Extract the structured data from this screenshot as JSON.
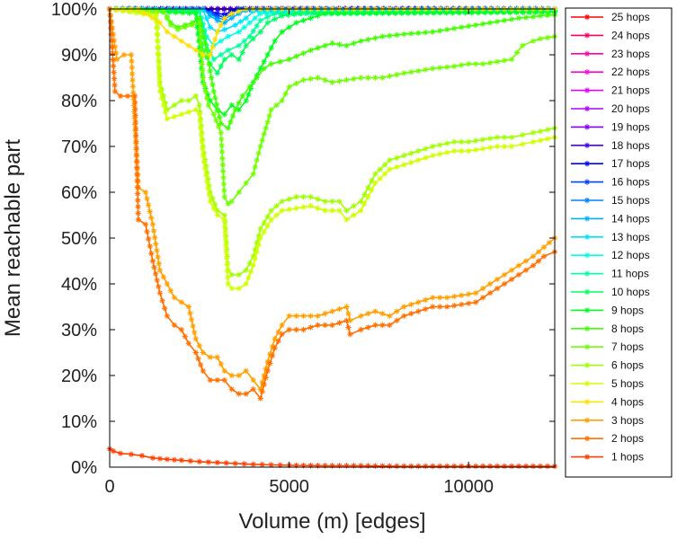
{
  "chart_data": {
    "type": "line",
    "title": "",
    "xlabel": "Volume (m) [edges]",
    "ylabel": "Mean reachable part",
    "xlim": [
      0,
      12400
    ],
    "ylim": [
      0,
      100
    ],
    "xticks": [
      0,
      5000,
      10000
    ],
    "xtick_labels": [
      "0",
      "5000",
      "10000"
    ],
    "yticks": [
      0,
      10,
      20,
      30,
      40,
      50,
      60,
      70,
      80,
      90,
      100
    ],
    "ytick_labels": [
      "0%",
      "10%",
      "20%",
      "30%",
      "40%",
      "50%",
      "60%",
      "70%",
      "80%",
      "90%",
      "100%"
    ],
    "legend_position": "right",
    "grid": false,
    "series": [
      {
        "name": "25 hops",
        "color": "#ff0000",
        "x": [
          0,
          12400
        ],
        "y": [
          100,
          100
        ]
      },
      {
        "name": "24 hops",
        "color": "#ff0060",
        "x": [
          0,
          12400
        ],
        "y": [
          100,
          100
        ]
      },
      {
        "name": "23 hops",
        "color": "#ff00a0",
        "x": [
          0,
          12400
        ],
        "y": [
          100,
          100
        ]
      },
      {
        "name": "22 hops",
        "color": "#ff00e0",
        "x": [
          0,
          12400
        ],
        "y": [
          100,
          100
        ]
      },
      {
        "name": "21 hops",
        "color": "#e000ff",
        "x": [
          0,
          12400
        ],
        "y": [
          100,
          100
        ]
      },
      {
        "name": "20 hops",
        "color": "#b000ff",
        "x": [
          0,
          12400
        ],
        "y": [
          100,
          100
        ]
      },
      {
        "name": "19 hops",
        "color": "#8000ff",
        "x": [
          0,
          12400
        ],
        "y": [
          100,
          100
        ]
      },
      {
        "name": "18 hops",
        "color": "#4000ff",
        "x": [
          0,
          12400
        ],
        "y": [
          100,
          100
        ]
      },
      {
        "name": "17 hops",
        "color": "#0000ff",
        "x": [
          0,
          2600,
          2800,
          3000,
          3200,
          3400,
          3600,
          12400
        ],
        "y": [
          100,
          100,
          99.5,
          99,
          98.8,
          99.5,
          100,
          100
        ]
      },
      {
        "name": "16 hops",
        "color": "#0040ff",
        "x": [
          0,
          2600,
          2800,
          3000,
          3200,
          3400,
          3600,
          12400
        ],
        "y": [
          100,
          100,
          99.2,
          98.5,
          98.3,
          99,
          100,
          100
        ]
      },
      {
        "name": "15 hops",
        "color": "#0080ff",
        "x": [
          0,
          2600,
          2800,
          3000,
          3200,
          3400,
          3600,
          12400
        ],
        "y": [
          100,
          100,
          99,
          98,
          97.8,
          98.8,
          99.8,
          100
        ]
      },
      {
        "name": "14 hops",
        "color": "#00b0ff",
        "x": [
          0,
          2600,
          2800,
          3000,
          3200,
          3400,
          3600,
          3800,
          12400
        ],
        "y": [
          100,
          100,
          98.5,
          97.5,
          97,
          98,
          99,
          99.8,
          100
        ]
      },
      {
        "name": "13 hops",
        "color": "#00e0ff",
        "x": [
          0,
          2600,
          2800,
          3000,
          3200,
          3500,
          3800,
          4000,
          12400
        ],
        "y": [
          100,
          99.8,
          96,
          95,
          95.5,
          96.5,
          98,
          99.5,
          99.8
        ]
      },
      {
        "name": "12 hops",
        "color": "#00ffe0",
        "x": [
          0,
          2500,
          2700,
          2900,
          3100,
          3300,
          3600,
          3900,
          4200,
          12400
        ],
        "y": [
          100,
          99.5,
          94,
          92,
          93,
          94,
          95,
          97,
          99,
          99.6
        ]
      },
      {
        "name": "11 hops",
        "color": "#00ffa0",
        "x": [
          0,
          2500,
          2700,
          2900,
          3100,
          3300,
          3600,
          3900,
          4200,
          4600,
          12400
        ],
        "y": [
          100,
          99.5,
          92,
          89,
          90,
          91,
          92,
          94,
          97.5,
          99,
          99.5
        ]
      },
      {
        "name": "10 hops",
        "color": "#00ff60",
        "x": [
          0,
          2400,
          2600,
          2800,
          3000,
          3200,
          3400,
          3600,
          3800,
          4000,
          4200,
          4400,
          4800,
          5500,
          12400
        ],
        "y": [
          100,
          99.5,
          91,
          88,
          86,
          89,
          90,
          89,
          92,
          93.5,
          95,
          97,
          98.5,
          99.2,
          99.5
        ]
      },
      {
        "name": "9 hops",
        "color": "#00ff20",
        "x": [
          0,
          2400,
          2600,
          2800,
          3000,
          3200,
          3400,
          3600,
          3800,
          4000,
          4200,
          4400,
          4600,
          4800,
          5200,
          5600,
          6000,
          12400
        ],
        "y": [
          100,
          99,
          84,
          80,
          78,
          77,
          79,
          78,
          80,
          84,
          87,
          90,
          93,
          95,
          97,
          98,
          99,
          99.3
        ]
      },
      {
        "name": "8 hops",
        "color": "#40ff00",
        "x": [
          0,
          1500,
          1700,
          1900,
          2100,
          2300,
          2500,
          2700,
          2900,
          3100,
          3300,
          3500,
          3700,
          3900,
          4100,
          4300,
          4500,
          5000,
          5600,
          6200,
          6600,
          7000,
          7600,
          8200,
          9000,
          9800,
          10200,
          10600,
          11000,
          11400,
          11800,
          12000,
          12400
        ],
        "y": [
          100,
          99.5,
          97,
          96,
          96.5,
          97,
          98,
          91,
          82,
          75,
          74,
          78,
          81,
          83,
          85,
          87,
          88,
          89,
          91,
          92.5,
          92,
          93,
          94,
          94.5,
          95,
          96,
          96.5,
          97,
          97.5,
          98,
          98.3,
          98.5,
          98.7
        ]
      },
      {
        "name": "7 hops",
        "color": "#70ff00",
        "x": [
          0,
          1500,
          1700,
          1900,
          2100,
          2300,
          2500,
          2600,
          2750,
          2900,
          3100,
          3200,
          3300,
          3400,
          3600,
          3800,
          4000,
          4200,
          4500,
          4800,
          5000,
          5400,
          5800,
          6200,
          6600,
          7000,
          7600,
          8200,
          8600,
          9000,
          9600,
          10000,
          10400,
          10800,
          11200,
          11500,
          11800,
          12000,
          12400
        ],
        "y": [
          100,
          99.5,
          96.5,
          95.5,
          96,
          96.5,
          97,
          85,
          79,
          77,
          73,
          59,
          57.5,
          58,
          60,
          62,
          64,
          70,
          78,
          80,
          83,
          84.5,
          85,
          84,
          84.5,
          85,
          85,
          86,
          86.5,
          87,
          87.5,
          88,
          88,
          88.5,
          89,
          92,
          93,
          93.5,
          94
        ]
      },
      {
        "name": "6 hops",
        "color": "#a0ff00",
        "x": [
          0,
          1300,
          1400,
          1600,
          1800,
          2000,
          2200,
          2400,
          2500,
          2600,
          2800,
          3000,
          3200,
          3300,
          3400,
          3600,
          3800,
          4000,
          4200,
          4500,
          4800,
          5200,
          5600,
          6000,
          6400,
          6600,
          6800,
          7000,
          7400,
          7800,
          8200,
          8600,
          9000,
          9600,
          10000,
          10400,
          10800,
          11200,
          11500,
          11800,
          12000,
          12400
        ],
        "y": [
          100,
          99,
          84,
          78,
          79,
          80,
          80,
          81,
          79,
          70,
          60,
          56,
          55,
          43,
          42,
          42,
          43,
          46,
          52,
          56,
          58,
          59,
          59,
          58,
          58,
          56,
          57,
          58,
          64,
          67,
          68,
          69,
          70,
          71,
          71,
          71.5,
          72,
          72,
          72.5,
          73,
          73.3,
          74
        ]
      },
      {
        "name": "5 hops",
        "color": "#d0ff00",
        "x": [
          0,
          1300,
          1400,
          1600,
          1800,
          2000,
          2200,
          2400,
          2500,
          2600,
          2800,
          3000,
          3200,
          3300,
          3400,
          3600,
          3800,
          4000,
          4200,
          4500,
          4800,
          5200,
          5600,
          6000,
          6400,
          6600,
          6800,
          7000,
          7400,
          7800,
          8200,
          8600,
          9000,
          9600,
          10000,
          10400,
          10800,
          11200,
          11500,
          11800,
          12000,
          12400
        ],
        "y": [
          100,
          98.5,
          82,
          76,
          76.5,
          77,
          77.5,
          78,
          77,
          68,
          58,
          55,
          54,
          40,
          39,
          39,
          40,
          44,
          50,
          54,
          56,
          56.5,
          57,
          56,
          56,
          54,
          55,
          56,
          62,
          65,
          66,
          67,
          68,
          69,
          69,
          69.5,
          70,
          70,
          70.5,
          71,
          71.3,
          72
        ]
      },
      {
        "name": "4 hops",
        "color": "#ffe000",
        "x": [
          0,
          400,
          600,
          800,
          1000,
          1200,
          1400,
          1600,
          1800,
          2000,
          2200,
          2400,
          2600,
          2800,
          3000,
          3200,
          3400,
          3600,
          3800,
          4000,
          4200,
          4400,
          4800,
          5200,
          5600,
          6000,
          6400,
          6600,
          6800,
          7000,
          7400,
          7800,
          8200,
          8600,
          9000,
          9400,
          9800,
          10200,
          10600,
          11000,
          11400,
          11800,
          12000,
          12400
        ],
        "y": [
          100,
          100,
          100,
          100,
          99,
          98,
          97,
          95,
          94,
          93,
          92,
          91,
          90,
          90,
          95,
          98,
          99,
          99.5,
          100,
          100,
          100,
          100,
          100,
          100,
          100,
          100,
          100,
          100,
          100,
          100,
          100,
          100,
          100,
          100,
          100,
          100,
          100,
          100,
          100,
          100,
          100,
          100,
          100,
          100
        ]
      },
      {
        "name": "3 hops",
        "color": "#ffa000",
        "x": [
          0,
          200,
          400,
          600,
          800,
          1000,
          1200,
          1400,
          1600,
          1800,
          2000,
          2200,
          2400,
          2600,
          2800,
          3000,
          3200,
          3400,
          3600,
          3800,
          4000,
          4200,
          4400,
          4600,
          4800,
          5000,
          5400,
          5800,
          6200,
          6600,
          6700,
          7000,
          7400,
          7800,
          8200,
          8600,
          9000,
          9400,
          9800,
          10200,
          10600,
          11000,
          11400,
          11800,
          12100,
          12400
        ],
        "y": [
          100,
          89,
          90,
          90,
          61,
          60,
          53,
          43,
          40,
          37,
          36,
          35,
          28,
          25,
          24,
          24,
          21,
          20,
          20,
          21,
          19,
          17,
          23,
          28,
          31,
          33,
          33,
          33,
          34,
          35,
          32,
          33,
          34,
          33,
          35,
          36,
          37,
          37,
          37.5,
          38,
          40,
          42,
          44,
          46,
          48,
          50
        ]
      },
      {
        "name": "2 hops",
        "color": "#ff7000",
        "x": [
          0,
          150,
          300,
          500,
          700,
          800,
          1000,
          1200,
          1400,
          1600,
          1800,
          2000,
          2200,
          2400,
          2600,
          2800,
          3000,
          3200,
          3400,
          3600,
          3800,
          4000,
          4200,
          4400,
          4600,
          4800,
          5000,
          5400,
          5800,
          6200,
          6600,
          6700,
          7000,
          7400,
          7800,
          8200,
          8600,
          9000,
          9400,
          9800,
          10200,
          10600,
          11000,
          11400,
          11800,
          12100,
          12400
        ],
        "y": [
          100,
          82,
          81,
          81,
          81,
          54,
          53,
          45,
          38,
          33,
          31,
          30,
          27,
          25,
          21,
          19,
          19,
          19,
          17,
          16,
          16,
          17,
          15,
          21,
          26,
          29,
          30,
          30,
          31,
          31,
          32,
          29,
          30,
          31,
          31,
          33,
          34,
          35,
          35,
          35.5,
          36,
          38,
          40,
          42,
          44,
          46,
          47
        ]
      },
      {
        "name": "1 hops",
        "color": "#ff4000",
        "x": [
          0,
          100,
          300,
          600,
          900,
          1200,
          1600,
          2000,
          2500,
          3000,
          3500,
          4000,
          4500,
          5000,
          6000,
          7000,
          8000,
          9000,
          10000,
          11000,
          12000,
          12400
        ],
        "y": [
          4,
          3.5,
          3,
          2.8,
          2.5,
          2,
          1.7,
          1.5,
          1.2,
          1,
          0.8,
          0.6,
          0.5,
          0.4,
          0.3,
          0.3,
          0.2,
          0.2,
          0.2,
          0.2,
          0.2,
          0.2
        ]
      }
    ]
  }
}
